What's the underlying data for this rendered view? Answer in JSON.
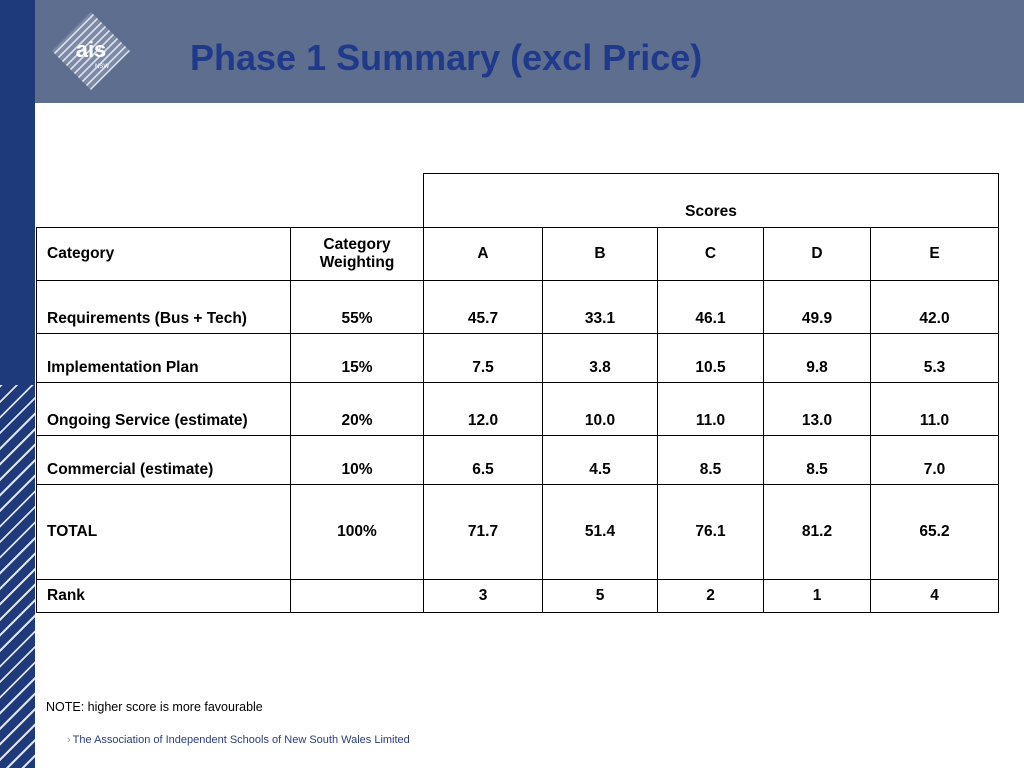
{
  "header": {
    "title": "Phase 1 Summary (excl Price)",
    "logo_text": "ais",
    "logo_subtext": "NSW"
  },
  "table": {
    "group_header": "Scores",
    "columns": [
      "Category",
      "Category Weighting",
      "A",
      "B",
      "C",
      "D",
      "E"
    ],
    "rows": [
      [
        "Requirements (Bus + Tech)",
        "55%",
        "45.7",
        "33.1",
        "46.1",
        "49.9",
        "42.0"
      ],
      [
        "Implementation Plan",
        "15%",
        "7.5",
        "3.8",
        "10.5",
        "9.8",
        "5.3"
      ],
      [
        "Ongoing Service (estimate)",
        "20%",
        "12.0",
        "10.0",
        "11.0",
        "13.0",
        "11.0"
      ],
      [
        "Commercial (estimate)",
        "10%",
        "6.5",
        "4.5",
        "8.5",
        "8.5",
        "7.0"
      ],
      [
        "TOTAL",
        "100%",
        "71.7",
        "51.4",
        "76.1",
        "81.2",
        "65.2"
      ],
      [
        "Rank",
        "",
        "3",
        "5",
        "2",
        "1",
        "4"
      ]
    ]
  },
  "note": "NOTE: higher score is more favourable",
  "footer": {
    "organisation": "The Association of Independent Schools of New South Wales Limited"
  },
  "colors": {
    "header_band": "#5e6e8e",
    "left_strip": "#1f3a7a",
    "title": "#1f3a8a"
  }
}
